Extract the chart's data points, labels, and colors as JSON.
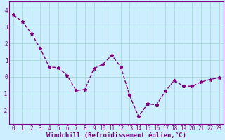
{
  "x": [
    0,
    1,
    2,
    3,
    4,
    5,
    6,
    7,
    8,
    9,
    10,
    11,
    12,
    13,
    14,
    15,
    16,
    17,
    18,
    19,
    20,
    21,
    22,
    23
  ],
  "y": [
    3.7,
    3.3,
    2.6,
    1.7,
    0.6,
    0.55,
    0.1,
    -0.8,
    -0.75,
    0.5,
    0.75,
    1.3,
    0.6,
    -1.1,
    -2.35,
    -1.6,
    -1.65,
    -0.85,
    -0.2,
    -0.55,
    -0.55,
    -0.3,
    -0.15,
    -0.05
  ],
  "line_color": "#800080",
  "marker": "*",
  "marker_size": 3.5,
  "bg_color": "#cceeff",
  "grid_color": "#aadddd",
  "xlabel": "Windchill (Refroidissement éolien,°C)",
  "ylim": [
    -2.8,
    4.5
  ],
  "xlim": [
    -0.5,
    23.5
  ],
  "yticks": [
    -2,
    -1,
    0,
    1,
    2,
    3,
    4
  ],
  "xticks": [
    0,
    1,
    2,
    3,
    4,
    5,
    6,
    7,
    8,
    9,
    10,
    11,
    12,
    13,
    14,
    15,
    16,
    17,
    18,
    19,
    20,
    21,
    22,
    23
  ],
  "tick_fontsize": 5.5,
  "xlabel_fontsize": 6.5,
  "line_width": 1.0
}
